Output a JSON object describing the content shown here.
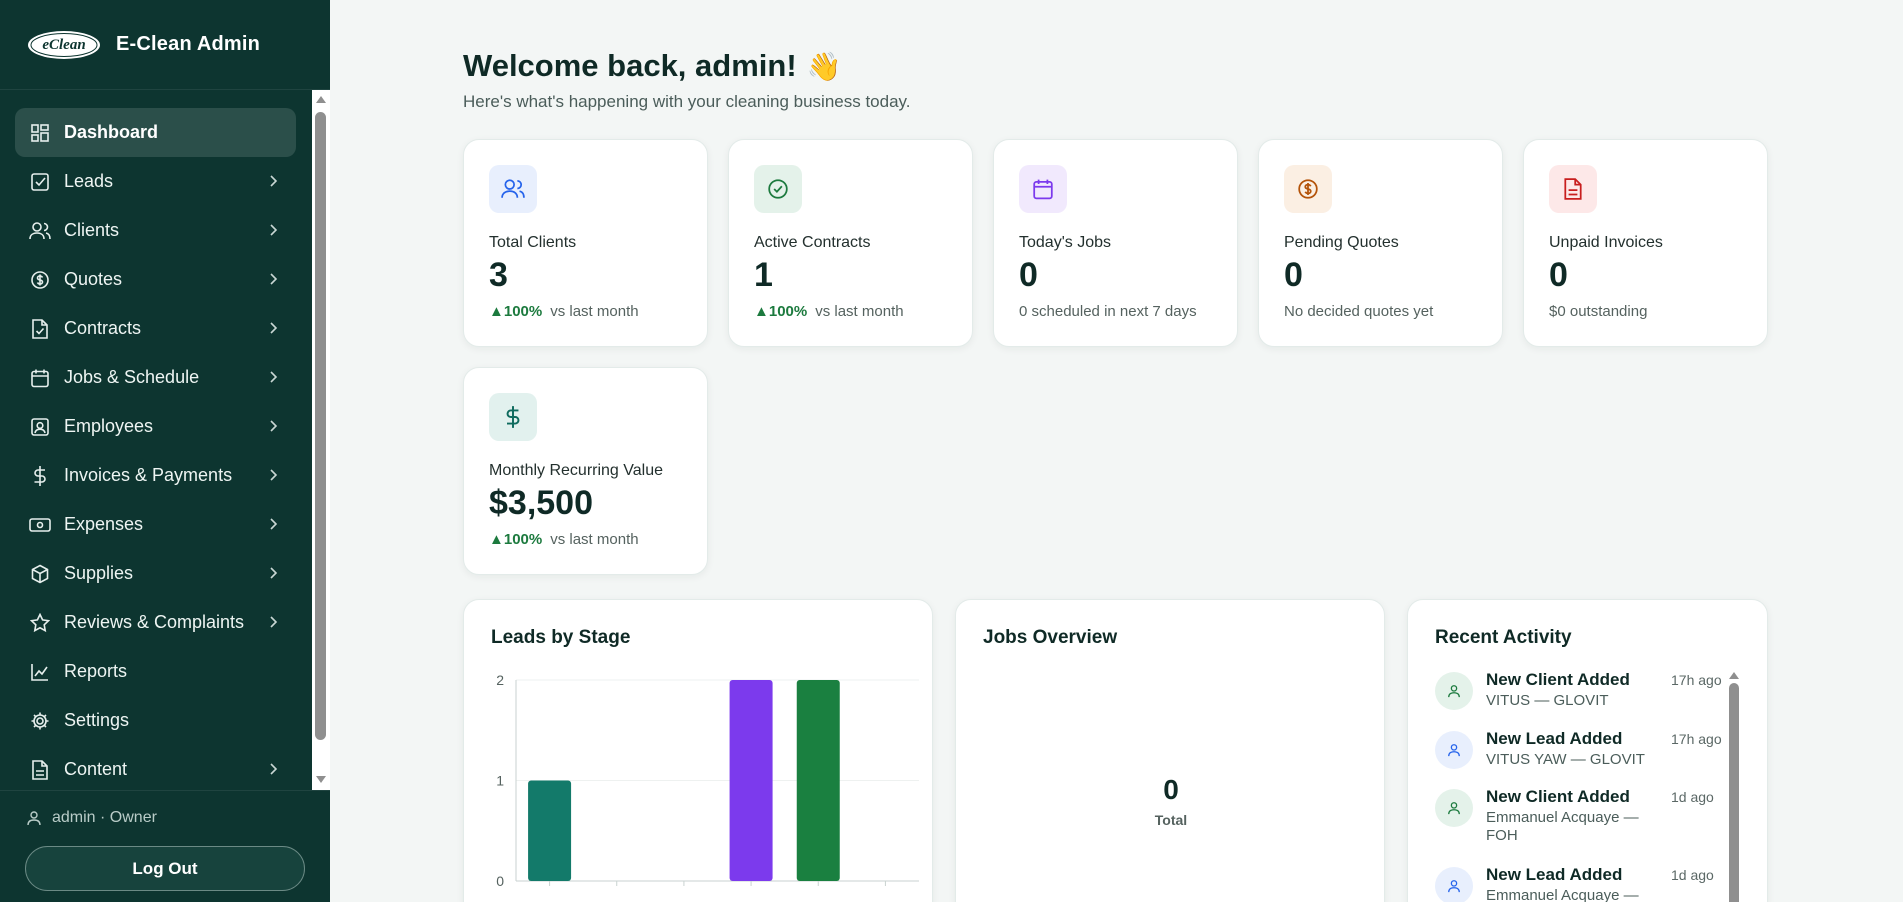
{
  "app": {
    "title": "E-Clean Admin",
    "logo_text": "eClean"
  },
  "sidebar": {
    "items": [
      {
        "label": "Dashboard",
        "icon": "dashboard-icon",
        "active": true,
        "chevron": false
      },
      {
        "label": "Leads",
        "icon": "checkbox-icon",
        "chevron": true
      },
      {
        "label": "Clients",
        "icon": "users-icon",
        "chevron": true
      },
      {
        "label": "Quotes",
        "icon": "coin-icon",
        "chevron": true
      },
      {
        "label": "Contracts",
        "icon": "file-check-icon",
        "chevron": true
      },
      {
        "label": "Jobs & Schedule",
        "icon": "calendar-icon",
        "chevron": true
      },
      {
        "label": "Employees",
        "icon": "badge-icon",
        "chevron": true
      },
      {
        "label": "Invoices & Payments",
        "icon": "dollar-icon",
        "chevron": true
      },
      {
        "label": "Expenses",
        "icon": "banknote-icon",
        "chevron": true
      },
      {
        "label": "Supplies",
        "icon": "box-icon",
        "chevron": true
      },
      {
        "label": "Reviews & Complaints",
        "icon": "star-icon",
        "chevron": true
      },
      {
        "label": "Reports",
        "icon": "chart-line-icon",
        "chevron": false
      },
      {
        "label": "Settings",
        "icon": "gear-icon",
        "chevron": false
      },
      {
        "label": "Content",
        "icon": "document-icon",
        "chevron": true
      }
    ],
    "user": "admin · Owner",
    "logout_label": "Log Out"
  },
  "header": {
    "welcome": "Welcome back, admin!",
    "wave": "👋",
    "subtitle": "Here's what's happening with your cleaning business today."
  },
  "stats": [
    {
      "label": "Total Clients",
      "value": "3",
      "trend": "▲100%",
      "foot": "vs last month",
      "icon": "users-icon",
      "color": "#2563eb",
      "bg": "#e8effd"
    },
    {
      "label": "Active Contracts",
      "value": "1",
      "trend": "▲100%",
      "foot": "vs last month",
      "icon": "check-circle-icon",
      "color": "#1c7a3e",
      "bg": "#e4f2ea"
    },
    {
      "label": "Today's Jobs",
      "value": "0",
      "trend": "",
      "foot": "0 scheduled in next 7 days",
      "icon": "calendar-icon",
      "color": "#7c3aed",
      "bg": "#f1e9fd"
    },
    {
      "label": "Pending Quotes",
      "value": "0",
      "trend": "",
      "foot": "No decided quotes yet",
      "icon": "coin-icon",
      "color": "#b45309",
      "bg": "#fbefe3"
    },
    {
      "label": "Unpaid Invoices",
      "value": "0",
      "trend": "",
      "foot": "$0 outstanding",
      "icon": "invoice-icon",
      "color": "#c81e1e",
      "bg": "#fde8e8"
    },
    {
      "label": "Monthly Recurring Value",
      "value": "$3,500",
      "trend": "▲100%",
      "foot": "vs last month",
      "icon": "dollar-icon",
      "color": "#0f6b5e",
      "bg": "#e2f1ee"
    }
  ],
  "leads_panel": {
    "title": "Leads by Stage"
  },
  "jobs_panel": {
    "title": "Jobs Overview",
    "total_value": "0",
    "total_label": "Total"
  },
  "activity_panel": {
    "title": "Recent Activity",
    "items": [
      {
        "title": "New Client Added",
        "sub": "VITUS — GLOVIT",
        "time": "17h ago",
        "kind": "client"
      },
      {
        "title": "New Lead Added",
        "sub": "VITUS YAW — GLOVIT",
        "time": "17h ago",
        "kind": "lead"
      },
      {
        "title": "New Client Added",
        "sub": "Emmanuel Acquaye — FOH",
        "time": "1d ago",
        "kind": "client"
      },
      {
        "title": "New Lead Added",
        "sub": "Emmanuel Acquaye —",
        "time": "1d ago",
        "kind": "lead"
      }
    ]
  },
  "chart_data": {
    "type": "bar",
    "title": "Leads by Stage",
    "categories": [
      "",
      "",
      "",
      "",
      "",
      ""
    ],
    "values": [
      1,
      0,
      0,
      2,
      2,
      0
    ],
    "colors": [
      "#137a6a",
      "#137a6a",
      "#137a6a",
      "#7c3aed",
      "#1a8040",
      "#137a6a"
    ],
    "ylim": [
      0,
      2
    ],
    "yticks": [
      0,
      1,
      2
    ],
    "grid": true
  }
}
